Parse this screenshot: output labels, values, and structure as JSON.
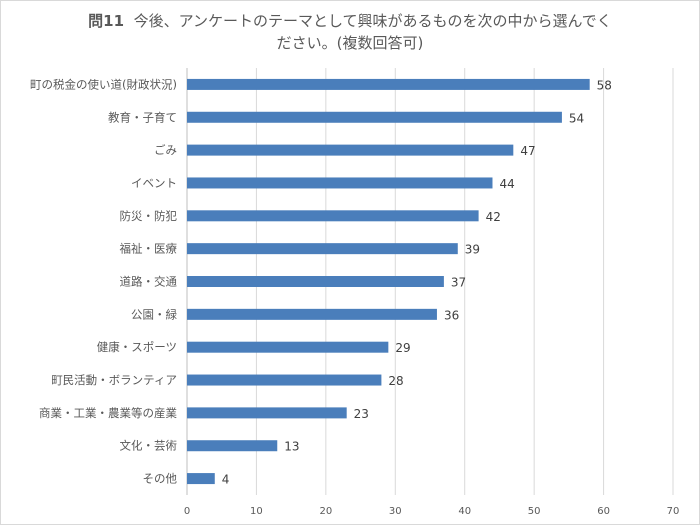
{
  "chart_data": {
    "type": "bar",
    "orientation": "horizontal",
    "title_prefix": "問11",
    "title_line1": "今後、アンケートのテーマとして興味があるものを次の中から選んでく",
    "title_line2": "ださい。(複数回答可)",
    "categories": [
      "町の税金の使い道(財政状況)",
      "教育・子育て",
      "ごみ",
      "イベント",
      "防災・防犯",
      "福祉・医療",
      "道路・交通",
      "公園・緑",
      "健康・スポーツ",
      "町民活動・ボランティア",
      "商業・工業・農業等の産業",
      "文化・芸術",
      "その他"
    ],
    "values": [
      58,
      54,
      47,
      44,
      42,
      39,
      37,
      36,
      29,
      28,
      23,
      13,
      4
    ],
    "xlim": [
      0,
      70
    ],
    "xticks": [
      0,
      10,
      20,
      30,
      40,
      50,
      60,
      70
    ],
    "grid": true,
    "data_labels": true,
    "bar_color": "#4a7ebb",
    "grid_color": "#d9d9d9"
  }
}
